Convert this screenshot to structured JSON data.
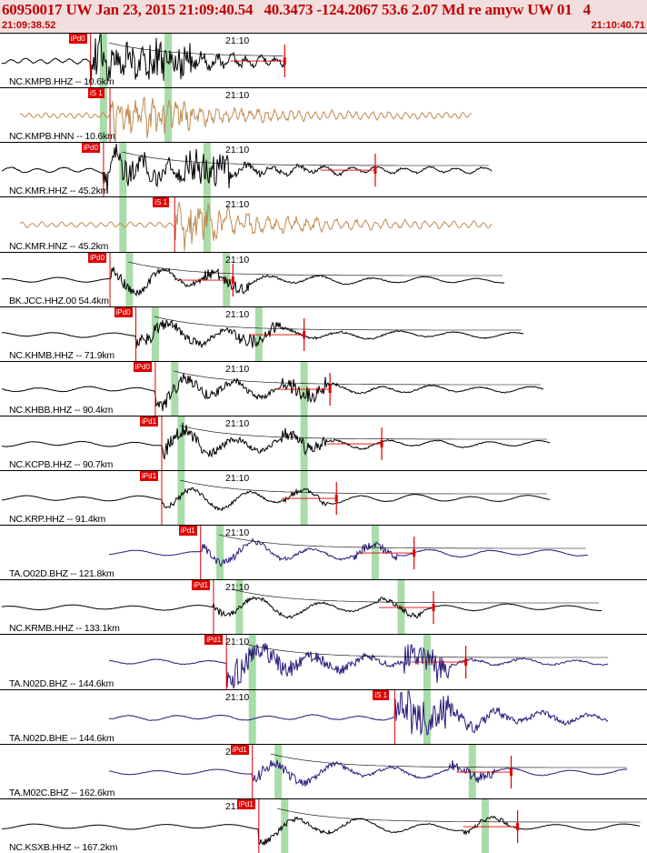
{
  "header": {
    "title": "60950017 UW Jan 23, 2015 21:09:40.54   40.3473 -124.2067 53.6 2.07 Md re amyw UW 01   4",
    "start_time": "21:09:38.52",
    "end_time": "21:10:40.71"
  },
  "colors": {
    "header_bg": "#f2dede",
    "header_text": "#c00000",
    "trace_black": "#000000",
    "trace_tan": "#c08a50",
    "trace_purple": "#2a1a7a",
    "pick_red": "#e00000",
    "window_green": "#a8dca8"
  },
  "time_tick": "21:10",
  "channels": [
    {
      "label": "NC.KMPB.HHZ -- 10.6km",
      "pick": "iPd0",
      "color": "black",
      "pick_t": 0.14,
      "p_win": 0.16,
      "s_win": 0.26,
      "end_t": 0.44,
      "arr_t": 0.44,
      "noise": 0.6,
      "period": 0.9
    },
    {
      "label": "NC.KMPB.HNN -- 10.6km",
      "pick": "iS 1",
      "color": "tan",
      "pick_t": 0.17,
      "p_win": 0.16,
      "s_win": 0.26,
      "end_t": 0.73,
      "arr_t": null,
      "noise": 0.4,
      "period": 0.5
    },
    {
      "label": "NC.KMR.HHZ -- 45.2km",
      "pick": "iPd0",
      "color": "black",
      "pick_t": 0.16,
      "p_win": 0.19,
      "s_win": 0.32,
      "end_t": 0.76,
      "arr_t": 0.58,
      "noise": 0.55,
      "period": 1.6
    },
    {
      "label": "NC.KMR.HNZ -- 45.2km",
      "pick": "iS 1",
      "color": "tan",
      "pick_t": 0.27,
      "p_win": 0.19,
      "s_win": 0.32,
      "end_t": 0.76,
      "arr_t": null,
      "noise": 0.35,
      "period": 0.6
    },
    {
      "label": "BK.JCC.HHZ.00 54.4km",
      "pick": "iPd0",
      "color": "black",
      "pick_t": 0.17,
      "p_win": 0.2,
      "s_win": 0.35,
      "end_t": 0.78,
      "arr_t": 0.36,
      "noise": 0.2,
      "period": 3.2
    },
    {
      "label": "NC.KHMB.HHZ -- 71.9km",
      "pick": "iPd0",
      "color": "black",
      "pick_t": 0.21,
      "p_win": 0.24,
      "s_win": 0.4,
      "end_t": 0.81,
      "arr_t": 0.47,
      "noise": 0.25,
      "period": 3.5
    },
    {
      "label": "NC.KHBB.HHZ -- 90.4km",
      "pick": "iPd0",
      "color": "black",
      "pick_t": 0.24,
      "p_win": 0.27,
      "s_win": 0.47,
      "end_t": 0.84,
      "arr_t": 0.51,
      "noise": 0.3,
      "period": 3.0
    },
    {
      "label": "NC.KCPB.HHZ -- 90.7km",
      "pick": "iPd1",
      "color": "black",
      "pick_t": 0.25,
      "p_win": 0.28,
      "s_win": 0.47,
      "end_t": 0.85,
      "arr_t": 0.59,
      "noise": 0.25,
      "period": 3.1
    },
    {
      "label": "NC.KRP.HHZ -- 91.4km",
      "pick": "iPd1",
      "color": "black",
      "pick_t": 0.25,
      "p_win": 0.28,
      "s_win": 0.47,
      "end_t": 0.85,
      "arr_t": 0.52,
      "noise": 0.1,
      "period": 3.4
    },
    {
      "label": "TA.O02D.BHZ -- 121.8km",
      "pick": "iPd1",
      "color": "purple",
      "pick_t": 0.31,
      "p_win": 0.34,
      "s_win": 0.58,
      "end_t": 0.91,
      "arr_t": 0.64,
      "noise": 0.15,
      "period": 3.6
    },
    {
      "label": "NC.KRMB.HHZ -- 133.1km",
      "pick": "iPd1",
      "color": "black",
      "pick_t": 0.33,
      "p_win": 0.37,
      "s_win": 0.62,
      "end_t": 0.93,
      "arr_t": 0.67,
      "noise": 0.1,
      "period": 3.8
    },
    {
      "label": "TA.N02D.BHZ -- 144.6km",
      "pick": "iPd1",
      "color": "purple",
      "pick_t": 0.35,
      "p_win": 0.39,
      "s_win": 0.66,
      "end_t": 0.94,
      "arr_t": 0.72,
      "noise": 0.5,
      "period": 3.2
    },
    {
      "label": "TA.N02D.BHE -- 144.6km",
      "pick": "iS 1",
      "color": "purple",
      "pick_t": 0.61,
      "p_win": 0.39,
      "s_win": 0.66,
      "end_t": 0.94,
      "arr_t": null,
      "noise": 0.45,
      "period": 2.8
    },
    {
      "label": "TA.M02C.BHZ -- 162.6km",
      "pick": "iPd1",
      "color": "purple",
      "pick_t": 0.39,
      "p_win": 0.43,
      "s_win": 0.73,
      "end_t": 0.97,
      "arr_t": 0.79,
      "noise": 0.2,
      "period": 3.6
    },
    {
      "label": "NC.KSXB.HHZ -- 167.2km",
      "pick": "iPd1",
      "color": "black",
      "pick_t": 0.4,
      "p_win": 0.44,
      "s_win": 0.75,
      "end_t": 0.99,
      "arr_t": 0.8,
      "noise": 0.1,
      "period": 4.0
    }
  ]
}
